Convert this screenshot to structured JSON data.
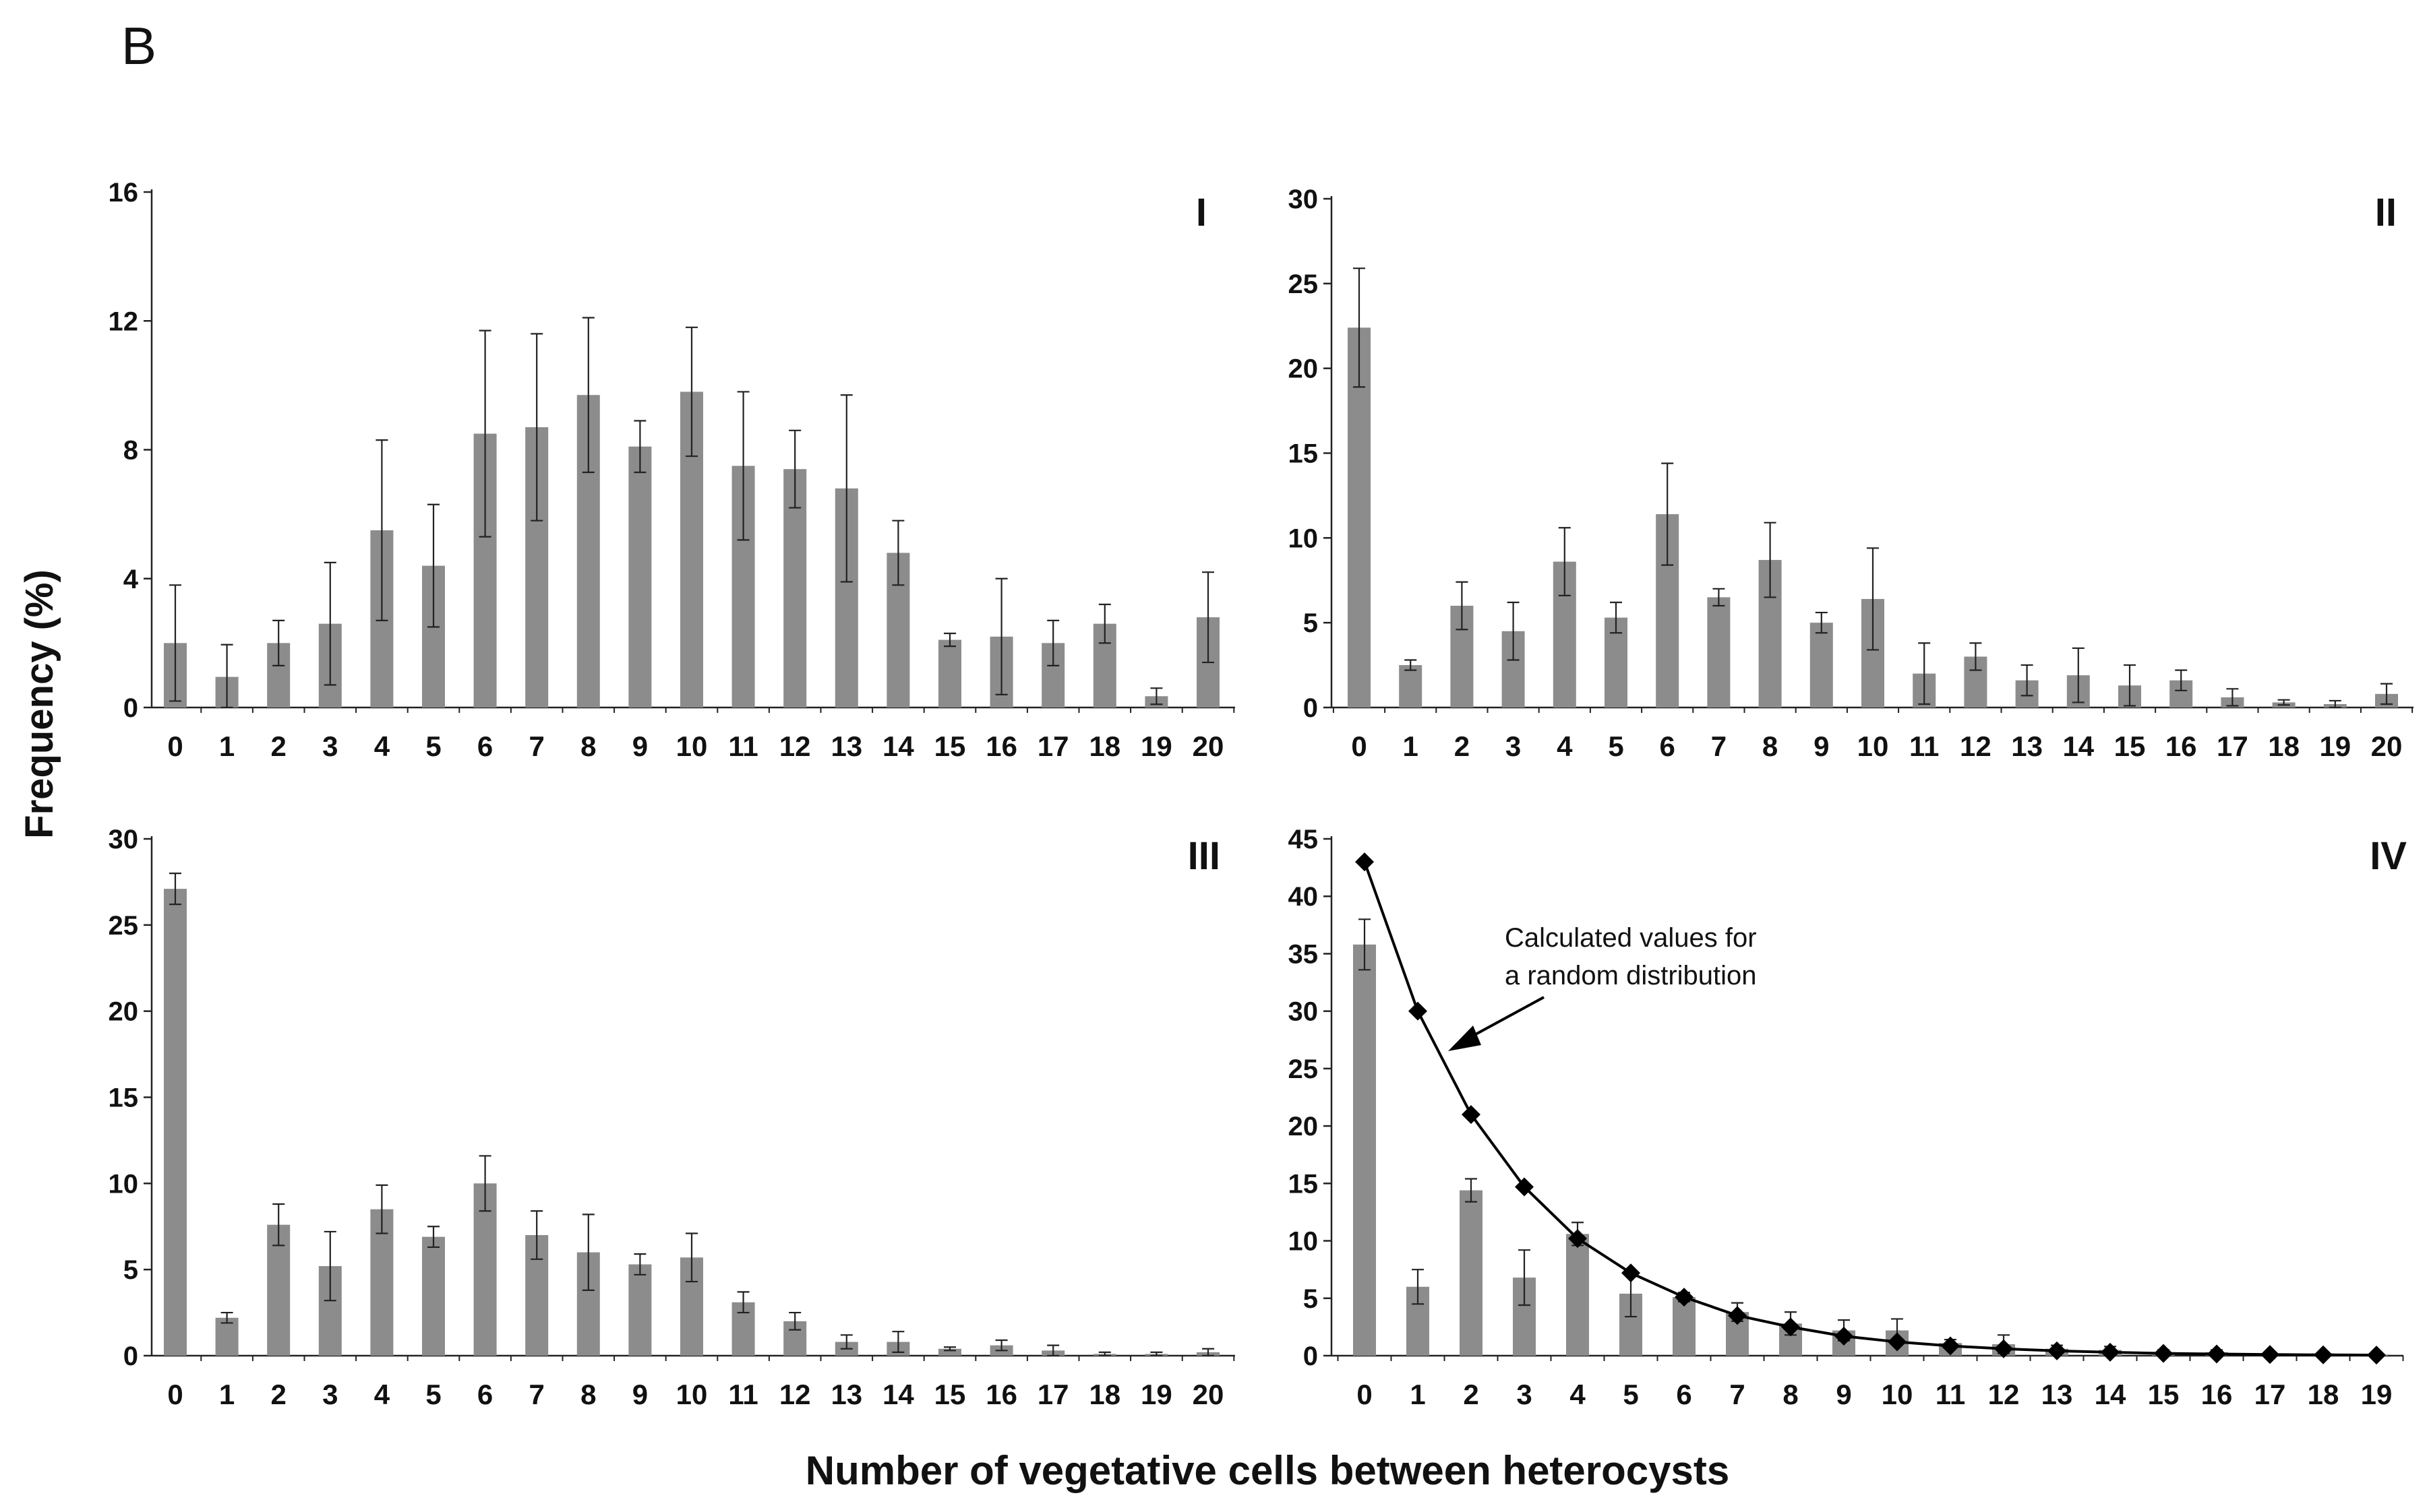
{
  "figure": {
    "panel_letter": "B",
    "ylabel": "Frequency (%)",
    "xlabel": "Number of vegetative cells between heterocysts"
  },
  "colors": {
    "bar": "#8c8c8c",
    "axis": "#222222",
    "text": "#111111",
    "curve": "#000000"
  },
  "chart_data": [
    {
      "type": "bar",
      "title": "I",
      "categories": [
        "0",
        "1",
        "2",
        "3",
        "4",
        "5",
        "6",
        "7",
        "8",
        "9",
        "10",
        "11",
        "12",
        "13",
        "14",
        "15",
        "16",
        "17",
        "18",
        "19",
        "20"
      ],
      "values": [
        2.0,
        0.95,
        2.0,
        2.6,
        5.5,
        4.4,
        8.5,
        8.7,
        9.7,
        8.1,
        9.8,
        7.5,
        7.4,
        6.8,
        4.8,
        2.1,
        2.2,
        2.0,
        2.6,
        0.35,
        2.8
      ],
      "errors": [
        1.8,
        1.0,
        0.7,
        1.9,
        2.8,
        1.9,
        3.2,
        2.9,
        2.4,
        0.8,
        2.0,
        2.3,
        1.2,
        2.9,
        1.0,
        0.2,
        1.8,
        0.7,
        0.6,
        0.25,
        1.4
      ],
      "ylim": [
        0,
        16
      ],
      "yticks": [
        0,
        4,
        8,
        12,
        16
      ]
    },
    {
      "type": "bar",
      "title": "II",
      "categories": [
        "0",
        "1",
        "2",
        "3",
        "4",
        "5",
        "6",
        "7",
        "8",
        "9",
        "10",
        "11",
        "12",
        "13",
        "14",
        "15",
        "16",
        "17",
        "18",
        "19",
        "20"
      ],
      "values": [
        22.4,
        2.5,
        6.0,
        4.5,
        8.6,
        5.3,
        11.4,
        6.5,
        8.7,
        5.0,
        6.4,
        2.0,
        3.0,
        1.6,
        1.9,
        1.3,
        1.6,
        0.6,
        0.3,
        0.2,
        0.8
      ],
      "errors": [
        3.5,
        0.3,
        1.4,
        1.7,
        2.0,
        0.9,
        3.0,
        0.5,
        2.2,
        0.6,
        3.0,
        1.8,
        0.8,
        0.9,
        1.6,
        1.2,
        0.6,
        0.5,
        0.15,
        0.2,
        0.6
      ],
      "ylim": [
        0,
        30
      ],
      "yticks": [
        0,
        5,
        10,
        15,
        20,
        25,
        30
      ]
    },
    {
      "type": "bar",
      "title": "III",
      "categories": [
        "0",
        "1",
        "2",
        "3",
        "4",
        "5",
        "6",
        "7",
        "8",
        "9",
        "10",
        "11",
        "12",
        "13",
        "14",
        "15",
        "16",
        "17",
        "18",
        "19",
        "20"
      ],
      "values": [
        27.1,
        2.2,
        7.6,
        5.2,
        8.5,
        6.9,
        10.0,
        7.0,
        6.0,
        5.3,
        5.7,
        3.1,
        2.0,
        0.8,
        0.8,
        0.4,
        0.6,
        0.3,
        0.1,
        0.1,
        0.2
      ],
      "errors": [
        0.9,
        0.3,
        1.2,
        2.0,
        1.4,
        0.6,
        1.6,
        1.4,
        2.2,
        0.6,
        1.4,
        0.6,
        0.5,
        0.4,
        0.6,
        0.1,
        0.3,
        0.3,
        0.1,
        0.1,
        0.2
      ],
      "ylim": [
        0,
        30
      ],
      "yticks": [
        0,
        5,
        10,
        15,
        20,
        25,
        30
      ]
    },
    {
      "type": "bar",
      "title": "IV",
      "categories": [
        "0",
        "1",
        "2",
        "3",
        "4",
        "5",
        "6",
        "7",
        "8",
        "9",
        "10",
        "11",
        "12",
        "13",
        "14",
        "15",
        "16",
        "17",
        "18",
        "19"
      ],
      "values": [
        35.8,
        6.0,
        14.4,
        6.8,
        10.6,
        5.4,
        5.1,
        3.8,
        2.8,
        2.2,
        2.2,
        1.1,
        1.0,
        0.6,
        0.5,
        0.3,
        0.3,
        0.2,
        0.2,
        0.1
      ],
      "errors": [
        2.2,
        1.5,
        1.0,
        2.4,
        1.0,
        2.0,
        0.4,
        0.8,
        1.0,
        0.9,
        1.0,
        0.3,
        0.8,
        0.3,
        0.3,
        0.2,
        0.2,
        0.1,
        0.1,
        0.1
      ],
      "ylim": [
        0,
        45
      ],
      "yticks": [
        0,
        5,
        10,
        15,
        20,
        25,
        30,
        35,
        40,
        45
      ],
      "line": {
        "name": "Calculated values for a random distribution",
        "label_lines": [
          "Calculated values for",
          "a random distribution"
        ],
        "values": [
          43.0,
          30.0,
          21.0,
          14.7,
          10.2,
          7.2,
          5.1,
          3.5,
          2.5,
          1.7,
          1.2,
          0.85,
          0.6,
          0.42,
          0.3,
          0.2,
          0.15,
          0.1,
          0.07,
          0.05
        ]
      }
    }
  ]
}
